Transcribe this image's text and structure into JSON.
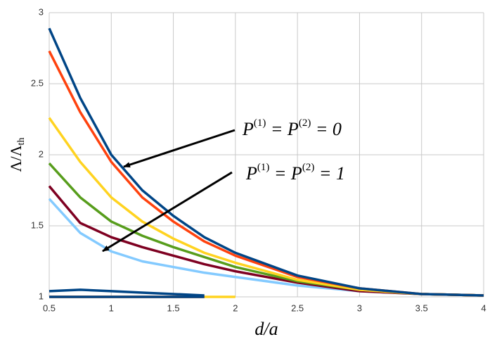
{
  "chart_data": {
    "type": "line",
    "x": [
      0.5,
      0.75,
      1,
      1.25,
      1.5,
      1.75,
      2,
      2.5,
      3,
      3.5,
      4
    ],
    "series": [
      {
        "color": "#83caff",
        "values": [
          1.69,
          1.45,
          1.32,
          1.25,
          1.21,
          1.17,
          1.14,
          1.08,
          1.04,
          1.02,
          1.01
        ]
      },
      {
        "color": "#7e0021",
        "values": [
          1.78,
          1.52,
          1.42,
          1.35,
          1.29,
          1.23,
          1.18,
          1.1,
          1.04,
          1.02,
          1.01
        ]
      },
      {
        "color": "#579d1c",
        "values": [
          1.94,
          1.7,
          1.53,
          1.43,
          1.35,
          1.28,
          1.21,
          1.11,
          1.05,
          1.02,
          1.01
        ]
      },
      {
        "color": "#ffd320",
        "values": [
          2.26,
          1.95,
          1.7,
          1.53,
          1.41,
          1.31,
          1.24,
          1.12,
          1.05,
          1.02,
          1.01
        ]
      },
      {
        "color": "#ff420e",
        "values": [
          2.73,
          2.3,
          1.95,
          1.7,
          1.53,
          1.39,
          1.29,
          1.14,
          1.06,
          1.02,
          1.01
        ]
      },
      {
        "color": "#004586",
        "values": [
          2.89,
          2.4,
          2.0,
          1.75,
          1.57,
          1.42,
          1.31,
          1.15,
          1.06,
          1.02,
          1.01
        ]
      },
      {
        "color": "#ffd320",
        "values": [
          1.0,
          1.0,
          1.0,
          1.0,
          1.0,
          1.0,
          1.0,
          null,
          null,
          null,
          null
        ]
      },
      {
        "color": "#ff420e",
        "values": [
          1.0,
          1.0,
          1.0,
          1.0,
          1.0,
          1.0,
          null,
          null,
          null,
          null,
          null
        ]
      },
      {
        "color": "#004586",
        "values": [
          1.04,
          1.05,
          1.04,
          1.03,
          1.02,
          1.01,
          null,
          null,
          null,
          null,
          null
        ]
      },
      {
        "color": "#004586",
        "values": [
          1.0,
          1.0,
          1.0,
          1.0,
          1.0,
          1.0,
          null,
          null,
          null,
          null,
          null
        ]
      }
    ],
    "xlim": [
      0.5,
      4
    ],
    "ylim": [
      1,
      3
    ],
    "xticks": [
      0.5,
      1,
      1.5,
      2,
      2.5,
      3,
      3.5,
      4
    ],
    "yticks": [
      1,
      1.5,
      2,
      2.5,
      3
    ],
    "grid": true,
    "x_label": "d/a",
    "y_label": [
      "Λ/Λ",
      "th"
    ],
    "annotations": [
      [
        "P",
        "(1)",
        " = P",
        "(2)",
        " = 0"
      ],
      [
        "P",
        "(1)",
        " = P",
        "(2)",
        " = 1"
      ]
    ]
  }
}
